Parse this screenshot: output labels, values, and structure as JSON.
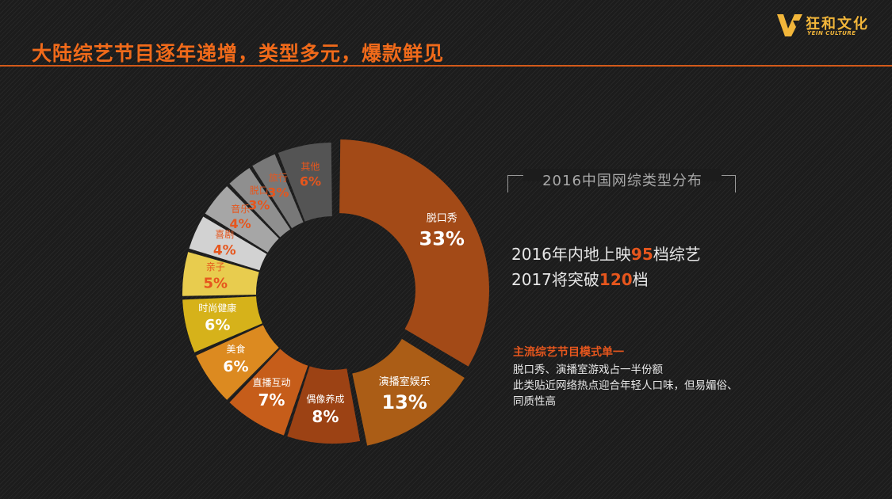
{
  "header": {
    "title": "大陆综艺节目逐年递增，类型多元，爆款鲜见"
  },
  "logo": {
    "name": "狂和文化",
    "sub": "YEIN CULTURE"
  },
  "legend_title": "2016中国网综类型分布",
  "stats": [
    {
      "pre": "2016年内地上映",
      "num": "95",
      "post": "档综艺"
    },
    {
      "pre": "2017将突破",
      "num": "120",
      "post": "档"
    }
  ],
  "note": {
    "title": "主流综艺节目模式单一",
    "lines": [
      "脱口秀、演播室游戏占一半份额",
      "此类贴近网络热点迎合年轻人口味，但易媚俗、",
      "同质性高"
    ]
  },
  "colors": {
    "accent": "#f06a1a",
    "highlight": "#e6561d"
  },
  "chart_data": {
    "type": "pie",
    "style": "donut",
    "categories": [
      "脱口秀",
      "演播室娱乐",
      "偶像养成",
      "直播互动",
      "美食",
      "时尚健康",
      "亲子",
      "喜剧",
      "音乐",
      "脱口",
      "旅行",
      "其他"
    ],
    "values": [
      33,
      13,
      8,
      7,
      6,
      6,
      5,
      4,
      4,
      3,
      3,
      6
    ],
    "labels": [
      "33%",
      "13%",
      "8%",
      "7%",
      "6%",
      "6%",
      "5%",
      "4%",
      "4%",
      "3%",
      "3%",
      "6%"
    ],
    "colors": [
      "#a34a17",
      "#ab5d16",
      "#9c4214",
      "#c65d1a",
      "#dc8a20",
      "#d6b21a",
      "#e8cc4e",
      "#d2d2d2",
      "#a6a6a6",
      "#8f8f8f",
      "#787878",
      "#545454"
    ]
  }
}
